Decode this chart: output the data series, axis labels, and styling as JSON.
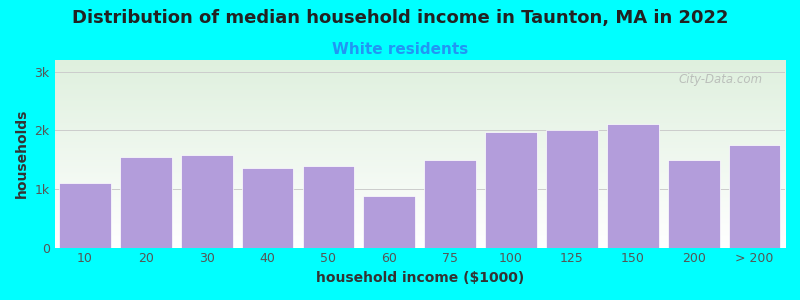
{
  "title": "Distribution of median household income in Taunton, MA in 2022",
  "subtitle": "White residents",
  "xlabel": "household income ($1000)",
  "ylabel": "households",
  "background_color": "#00FFFF",
  "plot_bg_top": "#dff0de",
  "plot_bg_bottom": "#ffffff",
  "bar_color": "#b39ddb",
  "bar_edge_color": "#ffffff",
  "categories": [
    "10",
    "20",
    "30",
    "40",
    "50",
    "60",
    "75",
    "100",
    "125",
    "150",
    "200",
    "> 200"
  ],
  "values": [
    1100,
    1550,
    1580,
    1350,
    1400,
    880,
    1500,
    1980,
    2000,
    2100,
    1500,
    1750
  ],
  "yticks": [
    0,
    1000,
    2000,
    3000
  ],
  "ytick_labels": [
    "0",
    "1k",
    "2k",
    "3k"
  ],
  "ylim": [
    0,
    3200
  ],
  "title_fontsize": 13,
  "subtitle_fontsize": 11,
  "subtitle_color": "#2196F3",
  "axis_label_fontsize": 10,
  "tick_fontsize": 9,
  "watermark": "City-Data.com"
}
